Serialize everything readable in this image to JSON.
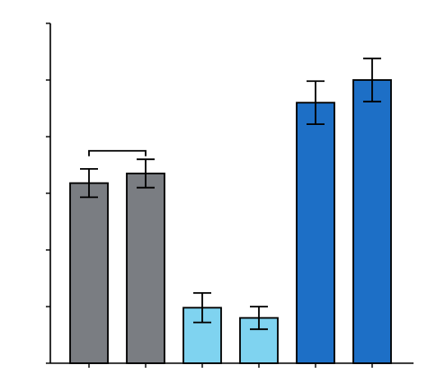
{
  "chart_data": {
    "type": "bar",
    "categories": [
      "",
      "",
      "",
      "",
      "",
      ""
    ],
    "values": [
      3.18,
      3.35,
      0.98,
      0.8,
      4.6,
      5.0
    ],
    "errors": [
      0.25,
      0.25,
      0.26,
      0.2,
      0.38,
      0.38
    ],
    "ylim": [
      0,
      6
    ],
    "yticks": [
      0,
      1,
      2,
      3,
      4,
      5,
      6
    ],
    "colors": [
      "#7a7d82",
      "#7a7d82",
      "#7fd3f0",
      "#7fd3f0",
      "#1d6fc6",
      "#1d6fc6"
    ],
    "comparison_brackets": [
      {
        "from": 0,
        "to": 1,
        "y": 3.75
      }
    ],
    "grid": false,
    "legend": "none"
  }
}
